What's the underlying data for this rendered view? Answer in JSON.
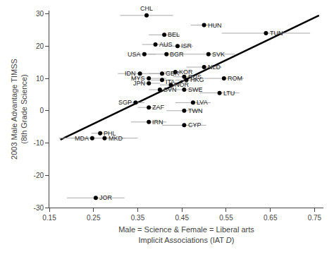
{
  "chart_data": {
    "type": "scatter",
    "xlabel": "Male = Science & Female = Liberal arts\nImplicit Associations (IAT D)",
    "ylabel": "2003 Male Advantage TIMSS\n(8th Grade Science)",
    "series": [
      {
        "type": "line",
        "color": "black",
        "line_style": "solid",
        "x": [
          0.175,
          0.76
        ],
        "values": [
          -9.0,
          29.5
        ]
      },
      {
        "type": "scatter",
        "color": "black",
        "error_color": "#aaaaaa",
        "marker": "circle",
        "x": [
          0.37,
          0.5,
          0.64,
          0.41,
          0.39,
          0.44,
          0.365,
          0.415,
          0.51,
          0.5,
          0.355,
          0.405,
          0.435,
          0.455,
          0.545,
          0.375,
          0.405,
          0.46,
          0.375,
          0.425,
          0.4,
          0.455,
          0.535,
          0.345,
          0.475,
          0.375,
          0.455,
          0.375,
          0.455,
          0.265,
          0.247,
          0.275,
          0.255
        ],
        "values": [
          29.5,
          26.5,
          24.0,
          23.5,
          20.5,
          20.0,
          17.5,
          17.5,
          17.5,
          13.5,
          11.5,
          11.5,
          12.0,
          10.5,
          10.0,
          10.0,
          9.5,
          9.5,
          8.5,
          8.0,
          6.5,
          6.5,
          5.5,
          2.5,
          2.5,
          1.0,
          0.0,
          -3.5,
          -4.5,
          -7.0,
          -8.5,
          -8.5,
          -27.0
        ],
        "xerr": [
          0.06,
          0.03,
          0.1,
          0.035,
          0.03,
          0.035,
          0.025,
          0.04,
          0.06,
          0.04,
          0.05,
          0.03,
          0.025,
          0.025,
          0.045,
          0.04,
          0.025,
          0.025,
          0.025,
          0.025,
          0.025,
          0.04,
          0.045,
          0.02,
          0.04,
          0.025,
          0.04,
          0.04,
          0.05,
          0.02,
          0.075,
          0.075,
          0.065
        ]
      }
    ],
    "annotations": [
      {
        "text": "CHL",
        "x": 0.37,
        "y": 29.5
      },
      {
        "text": "HUN",
        "x": 0.505,
        "y": 26.5
      },
      {
        "text": "TUN",
        "x": 0.645,
        "y": 24.0
      },
      {
        "text": "BEL",
        "x": 0.415,
        "y": 23.5
      },
      {
        "text": "AUS",
        "x": 0.395,
        "y": 20.5
      },
      {
        "text": "ISR",
        "x": 0.445,
        "y": 20.0
      },
      {
        "text": "USA",
        "x": 0.36,
        "y": 17.5
      },
      {
        "text": "BGR",
        "x": 0.42,
        "y": 17.5
      },
      {
        "text": "SVK",
        "x": 0.515,
        "y": 17.5
      },
      {
        "text": "NLD",
        "x": 0.505,
        "y": 13.5
      },
      {
        "text": "IDN",
        "x": 0.35,
        "y": 11.5
      },
      {
        "text": "GBR",
        "x": 0.41,
        "y": 11.5
      },
      {
        "text": "KOR",
        "x": 0.44,
        "y": 12.0
      },
      {
        "text": "RUS",
        "x": 0.46,
        "y": 10.5
      },
      {
        "text": "ROM",
        "x": 0.55,
        "y": 10.0
      },
      {
        "text": "MYS",
        "x": 0.37,
        "y": 10.0
      },
      {
        "text": "ITA",
        "x": 0.41,
        "y": 9.0
      },
      {
        "text": "HKG",
        "x": 0.465,
        "y": 9.5
      },
      {
        "text": "JPN",
        "x": 0.37,
        "y": 8.5
      },
      {
        "text": "NOR",
        "x": 0.43,
        "y": 8.0
      },
      {
        "text": "SVN",
        "x": 0.405,
        "y": 6.5
      },
      {
        "text": "SWE",
        "x": 0.46,
        "y": 6.5
      },
      {
        "text": "LTU",
        "x": 0.54,
        "y": 5.5
      },
      {
        "text": "SGP",
        "x": 0.34,
        "y": 2.5
      },
      {
        "text": "LVA",
        "x": 0.48,
        "y": 2.5
      },
      {
        "text": "ZAF",
        "x": 0.38,
        "y": 1.0
      },
      {
        "text": "TWN",
        "x": 0.46,
        "y": 0.0
      },
      {
        "text": "IRN",
        "x": 0.38,
        "y": -3.5
      },
      {
        "text": "CYP",
        "x": 0.46,
        "y": -4.5
      },
      {
        "text": "PHL",
        "x": 0.27,
        "y": -7.0
      },
      {
        "text": "MDA",
        "x": 0.242,
        "y": -8.5
      },
      {
        "text": "MKD",
        "x": 0.28,
        "y": -8.5
      },
      {
        "text": "JOR",
        "x": 0.26,
        "y": -27.0
      }
    ],
    "xlim": [
      0.15,
      0.77
    ],
    "ylim": [
      -30,
      31
    ],
    "xticks": [
      0.15,
      0.25,
      0.35,
      0.45,
      0.55,
      0.65,
      0.75
    ],
    "yticks": [
      -30,
      -20,
      -10,
      0,
      10,
      20,
      30
    ],
    "grid": false
  }
}
